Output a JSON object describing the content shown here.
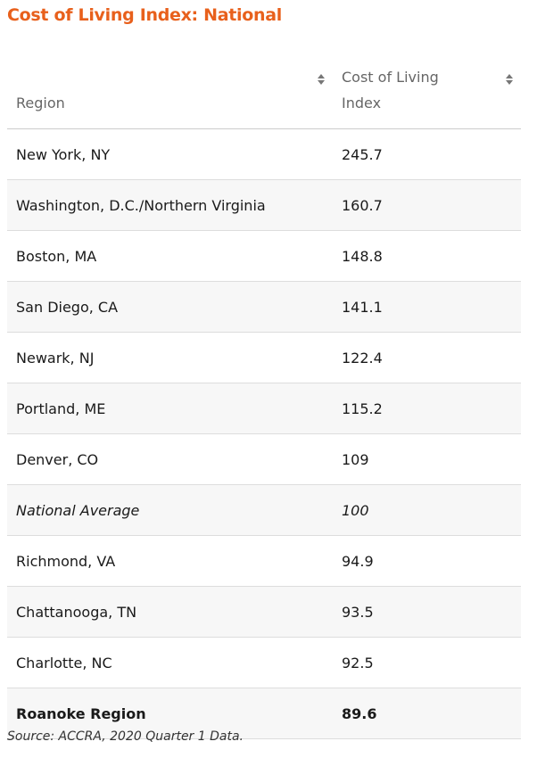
{
  "header": {
    "title": "Cost of Living Index: National"
  },
  "table": {
    "columns": [
      "Region",
      "Cost of Living Index"
    ],
    "rows": [
      [
        "New York, NY",
        "245.7"
      ],
      [
        "Washington, D.C./Northern Virginia",
        "160.7"
      ],
      [
        "Boston, MA",
        "148.8"
      ],
      [
        "San Diego, CA",
        "141.1"
      ],
      [
        "Newark, NJ",
        "122.4"
      ],
      [
        "Portland, ME",
        "115.2"
      ],
      [
        "Denver, CO",
        "109"
      ],
      [
        "National Average",
        "100"
      ],
      [
        "Richmond, VA",
        "94.9"
      ],
      [
        "Chattanooga, TN",
        "93.5"
      ],
      [
        "Charlotte, NC",
        "92.5"
      ],
      [
        "Roanoke Region",
        "89.6"
      ]
    ]
  },
  "footer": {
    "source": "Source: ACCRA, 2020 Quarter 1 Data."
  }
}
